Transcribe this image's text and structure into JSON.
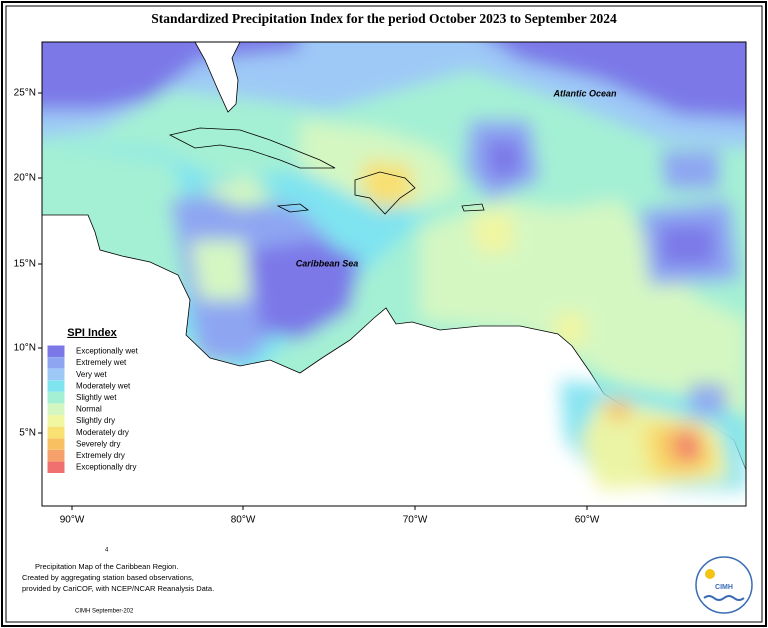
{
  "header": {
    "title": "Standardized Precipitation Index for the period October 2023 to September 2024"
  },
  "map": {
    "lat_labels": [
      "25°N",
      "20°N",
      "15°N",
      "10°N",
      "5°N"
    ],
    "lon_labels": [
      "90°W",
      "80°W",
      "70°W",
      "60°W"
    ],
    "place_labels": [
      "Atlantic Ocean",
      "Caribbean Sea"
    ]
  },
  "legend": {
    "title": "SPI Index",
    "items": [
      {
        "label": "Exceptionally wet",
        "color": "#7b78e8"
      },
      {
        "label": "Extremely wet",
        "color": "#8ea6f2"
      },
      {
        "label": "Very wet",
        "color": "#9ec9f7"
      },
      {
        "label": "Moderately wet",
        "color": "#7fe3f0"
      },
      {
        "label": "Slightly wet",
        "color": "#a4f0d4"
      },
      {
        "label": "Normal",
        "color": "#d4f7c2"
      },
      {
        "label": "Slightly dry",
        "color": "#f1f6a0"
      },
      {
        "label": "Moderately dry",
        "color": "#f8e072"
      },
      {
        "label": "Severely dry",
        "color": "#f8c060"
      },
      {
        "label": "Extremely dry",
        "color": "#f6a06c"
      },
      {
        "label": "Exceptionally dry",
        "color": "#f07070"
      }
    ]
  },
  "footer": {
    "note_lines": [
      "Precipitation Map of the Caribbean Region.",
      "Created by aggregating station based observations,",
      "provided by CariCOF, with NCEP/NCAR Reanalysis Data."
    ],
    "stray_mark": "4",
    "credit": "CIMH September-202",
    "logo": "CIMH"
  }
}
